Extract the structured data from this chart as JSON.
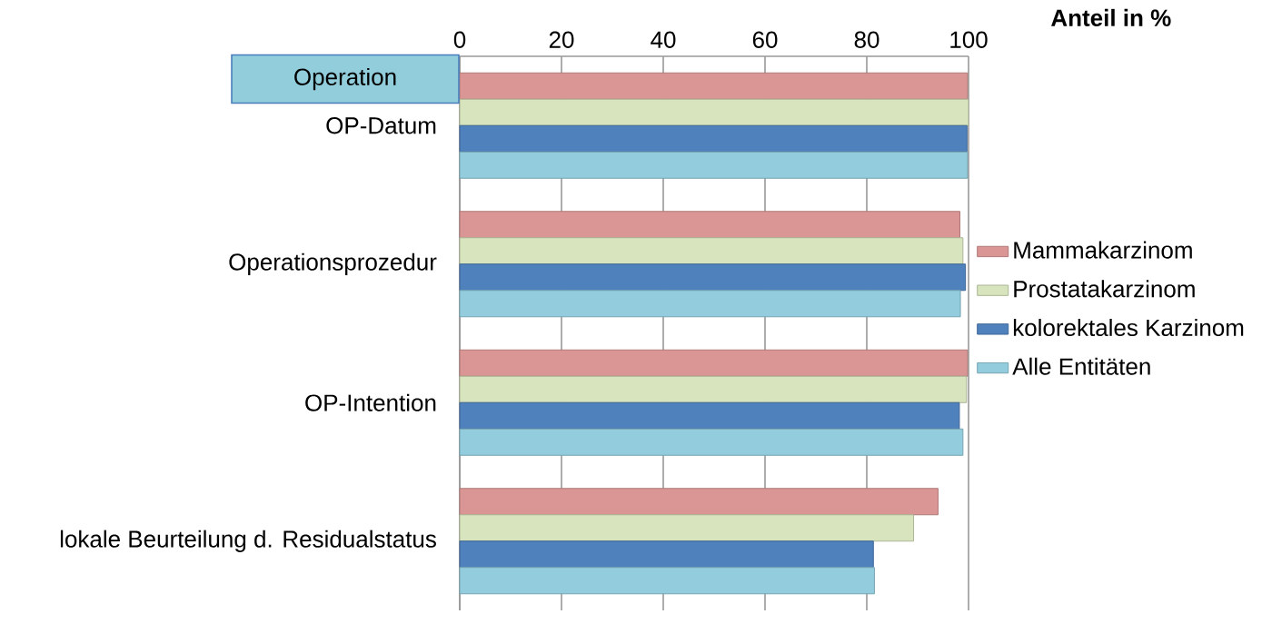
{
  "chart_data": {
    "type": "bar",
    "orientation": "horizontal",
    "xlabel": "Anteil in %",
    "categories": [
      "OP-Datum",
      "Operationsprozedur",
      "OP-Intention",
      "lokale Beurteilung d. Residualstatus"
    ],
    "series": [
      {
        "name": "Mammakarzinom",
        "color": "#d99694",
        "values": [
          99.8,
          98.3,
          99.8,
          94.0
        ]
      },
      {
        "name": "Prostatakarzinom",
        "color": "#d7e4bd",
        "values": [
          100,
          98.9,
          99.6,
          89.2
        ]
      },
      {
        "name": "kolorektales Karzinom",
        "color": "#4f81bd",
        "values": [
          99.7,
          99.4,
          98.2,
          81.3
        ]
      },
      {
        "name": "Alle Entitäten",
        "color": "#93cddd",
        "values": [
          99.8,
          98.4,
          98.9,
          81.5
        ]
      }
    ],
    "annotations": [
      "Operation"
    ],
    "xlim": [
      0,
      100
    ],
    "xticks": [
      0,
      20,
      40,
      60,
      80,
      100
    ],
    "grid": "x",
    "legend": "right"
  }
}
